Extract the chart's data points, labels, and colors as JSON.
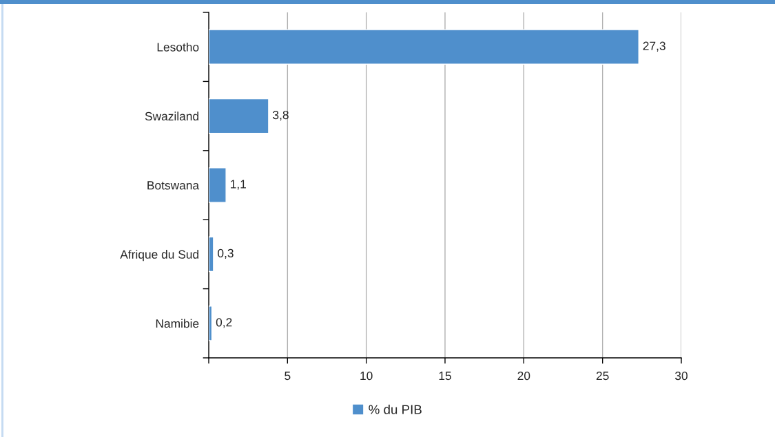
{
  "chart_data": {
    "type": "bar",
    "orientation": "horizontal",
    "categories": [
      "Lesotho",
      "Swaziland",
      "Botswana",
      "Afrique du Sud",
      "Namibie"
    ],
    "series": [
      {
        "name": "% du PIB",
        "color": "#4f8fcc",
        "values": [
          27.3,
          3.8,
          1.1,
          0.3,
          0.2
        ],
        "value_labels": [
          "27,3",
          "3,8",
          "1,1",
          "0,3",
          "0,2"
        ]
      }
    ],
    "xlim": [
      0,
      30
    ],
    "xticks": [
      {
        "value": 0,
        "label": null
      },
      5,
      10,
      15,
      20,
      25,
      30
    ],
    "grid": "x",
    "legend": "bottom"
  }
}
